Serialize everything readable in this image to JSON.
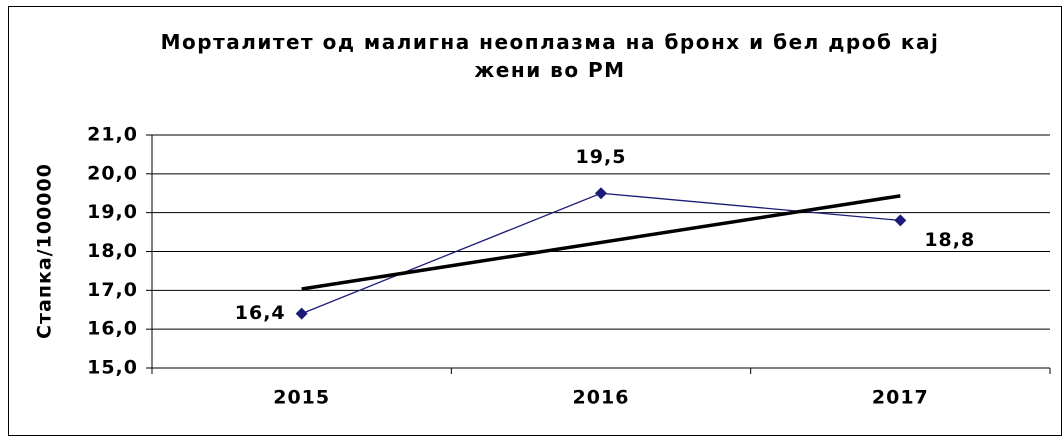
{
  "chart_data": {
    "type": "line",
    "title": "Морталитет од малигна неоплазма на бронх и бел дроб кај жени во РМ",
    "y_label": "Стапка/100000",
    "categories": [
      "2015",
      "2016",
      "2017"
    ],
    "series": [
      {
        "color": "#1c1c78",
        "values": [
          16.4,
          19.5,
          18.8
        ],
        "value_labels": [
          "16,4",
          "19,5",
          "18,8"
        ]
      }
    ],
    "trendline": "linear",
    "trendline_color": "#000000",
    "ylim": [
      15,
      21
    ],
    "yticks": [
      {
        "value": 15,
        "label": "15,0"
      },
      {
        "value": 16,
        "label": "16,0"
      },
      {
        "value": 17,
        "label": "17,0"
      },
      {
        "value": 18,
        "label": "18,0"
      },
      {
        "value": 19,
        "label": "19,0"
      },
      {
        "value": 20,
        "label": "20,0"
      },
      {
        "value": 21,
        "label": "21,0"
      }
    ],
    "grid": true
  }
}
